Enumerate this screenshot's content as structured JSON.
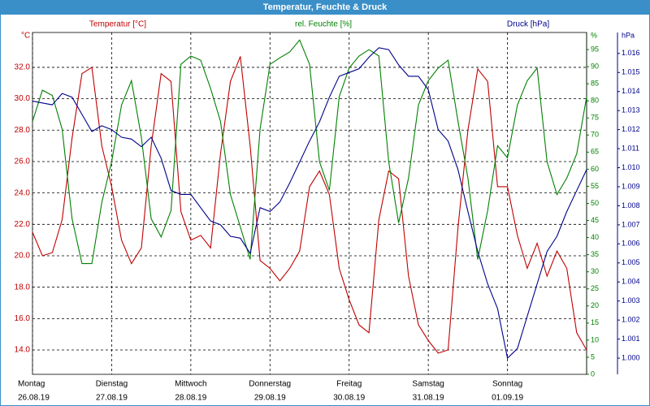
{
  "chart_data": {
    "type": "line",
    "title": "Temperatur, Feuchte & Druck",
    "xlim": [
      0,
      7
    ],
    "xticks": [
      0,
      1,
      2,
      3,
      4,
      5,
      6,
      7
    ],
    "x_labels": [
      {
        "value": 0,
        "day": "Montag",
        "date": "26.08.19"
      },
      {
        "value": 1,
        "day": "Dienstag",
        "date": "27.08.19"
      },
      {
        "value": 2,
        "day": "Mittwoch",
        "date": "28.08.19"
      },
      {
        "value": 3,
        "day": "Donnerstag",
        "date": "29.08.19"
      },
      {
        "value": 4,
        "day": "Freitag",
        "date": "30.08.19"
      },
      {
        "value": 5,
        "day": "Samstag",
        "date": "31.08.19"
      },
      {
        "value": 6,
        "day": "Sonntag",
        "date": "01.09.19"
      }
    ],
    "y_unit": "°C",
    "ylim": [
      12.45,
      34.22
    ],
    "yticks": [
      {
        "value": 14,
        "label": "14.0"
      },
      {
        "value": 16,
        "label": "16.0"
      },
      {
        "value": 18,
        "label": "18.0"
      },
      {
        "value": 20,
        "label": "20.0"
      },
      {
        "value": 22,
        "label": "22.0"
      },
      {
        "value": 24,
        "label": "24.0"
      },
      {
        "value": 26,
        "label": "26.0"
      },
      {
        "value": 28,
        "label": "28.0"
      },
      {
        "value": 30,
        "label": "30.0"
      },
      {
        "value": 32,
        "label": "32.0"
      }
    ],
    "y2_unit": "%",
    "y2lim": [
      0,
      100
    ],
    "y2ticks": [
      0,
      5,
      10,
      15,
      20,
      25,
      30,
      35,
      40,
      45,
      50,
      55,
      60,
      65,
      70,
      75,
      80,
      85,
      90,
      95
    ],
    "y3_unit": "hPa",
    "y3lim": [
      0.99915,
      1.0171
    ],
    "y3ticks": [
      {
        "value": 1.0,
        "label": "1.000"
      },
      1.001,
      1.002,
      1.003,
      1.004,
      1.005,
      1.006,
      1.007,
      1.008,
      1.009,
      {
        "value": 1.01,
        "label": "1.010"
      },
      1.011,
      1.012,
      1.013,
      1.014,
      1.015,
      1.016
    ],
    "grid": true,
    "x": [
      0,
      0.125,
      0.25,
      0.375,
      0.5,
      0.625,
      0.75,
      0.875,
      1,
      1.125,
      1.25,
      1.375,
      1.5,
      1.625,
      1.75,
      1.875,
      2,
      2.125,
      2.25,
      2.375,
      2.5,
      2.625,
      2.75,
      2.875,
      3,
      3.125,
      3.25,
      3.375,
      3.5,
      3.625,
      3.75,
      3.875,
      4,
      4.125,
      4.25,
      4.375,
      4.5,
      4.625,
      4.75,
      4.875,
      5,
      5.125,
      5.25,
      5.375,
      5.5,
      5.625,
      5.75,
      5.875,
      6,
      6.125,
      6.25,
      6.375,
      6.5,
      6.625,
      6.75,
      6.875,
      7
    ],
    "series": [
      {
        "name": "Temperatur [°C]",
        "color": "#c00000",
        "axis": "y",
        "values": [
          21.5,
          20.0,
          20.2,
          22.3,
          27.5,
          31.6,
          32.0,
          27.0,
          24.4,
          21.0,
          19.5,
          20.5,
          27.0,
          31.6,
          31.1,
          22.8,
          21.0,
          21.3,
          20.5,
          26.5,
          31.1,
          32.7,
          27.0,
          19.7,
          19.2,
          18.4,
          19.2,
          20.3,
          24.4,
          25.4,
          23.9,
          19.2,
          17.2,
          15.6,
          15.1,
          22.3,
          25.4,
          24.9,
          18.7,
          15.6,
          14.6,
          13.8,
          14.0,
          21.8,
          28.0,
          31.9,
          31.1,
          24.4,
          24.4,
          21.3,
          19.2,
          20.8,
          18.7,
          20.3,
          19.2,
          15.1,
          14.0
        ]
      },
      {
        "name": "rel. Feuchte [%]",
        "color": "#008000",
        "axis": "y2",
        "values": [
          74.0,
          83.1,
          81.6,
          71.7,
          45.5,
          32.4,
          32.4,
          50.3,
          62.2,
          78.8,
          85.9,
          69.3,
          45.5,
          40.2,
          47.9,
          90.7,
          93.1,
          91.9,
          83.6,
          74.0,
          52.6,
          43.1,
          33.6,
          71.7,
          90.7,
          92.6,
          94.3,
          97.8,
          90.7,
          62.2,
          53.8,
          81.2,
          89.6,
          93.1,
          95.0,
          93.1,
          62.2,
          44.3,
          57.4,
          78.8,
          85.9,
          89.6,
          91.9,
          74.0,
          57.4,
          33.6,
          47.9,
          66.9,
          63.3,
          78.8,
          85.9,
          89.6,
          62.2,
          52.6,
          57.4,
          64.5,
          81.2
        ]
      },
      {
        "name": "Druck [hPa]",
        "color": "#00008b",
        "axis": "y3",
        "values": [
          1.0135,
          1.0134,
          1.0133,
          1.0139,
          1.0137,
          1.0128,
          1.0119,
          1.0122,
          1.012,
          1.0116,
          1.0115,
          1.0111,
          1.0116,
          1.0105,
          1.0088,
          1.0086,
          1.0086,
          1.0079,
          1.0072,
          1.007,
          1.0064,
          1.0063,
          1.0055,
          1.0079,
          1.0077,
          1.0082,
          1.0092,
          1.0103,
          1.0114,
          1.0124,
          1.0137,
          1.0148,
          1.015,
          1.0152,
          1.0158,
          1.0163,
          1.0162,
          1.0154,
          1.0148,
          1.0148,
          1.0141,
          1.012,
          1.0114,
          1.0099,
          1.0077,
          1.0056,
          1.0039,
          1.0026,
          1.0,
          1.0005,
          1.0022,
          1.0039,
          1.0056,
          1.0064,
          1.0077,
          1.0088,
          1.0099
        ]
      }
    ]
  }
}
